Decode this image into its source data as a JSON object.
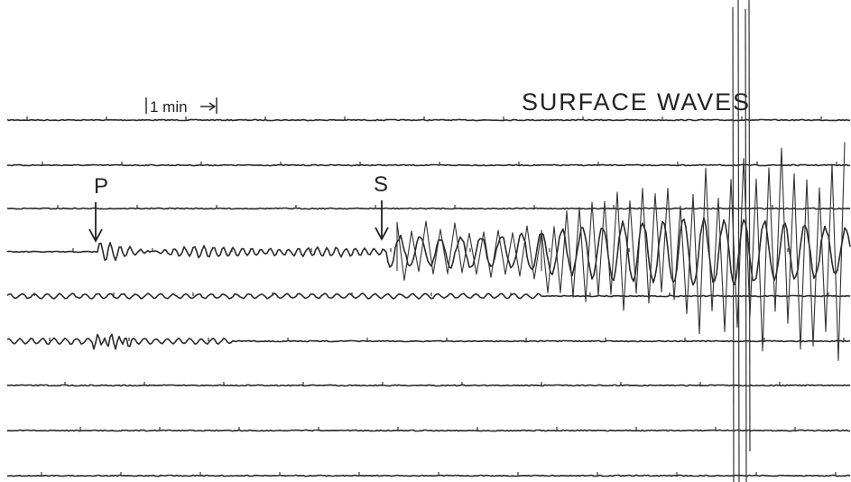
{
  "labels": {
    "scale": "1 min",
    "p_wave": "P",
    "s_wave": "S",
    "surface_waves": "SURFACE WAVES"
  }
}
